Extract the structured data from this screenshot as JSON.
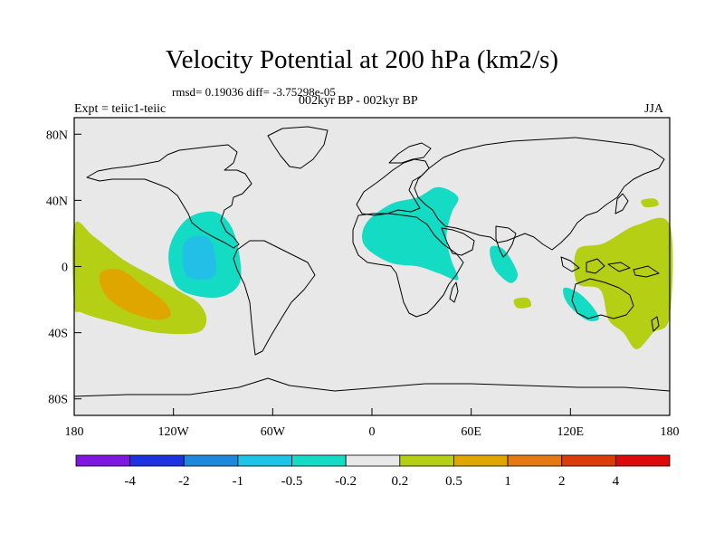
{
  "title": "Velocity Potential at 200 hPa (km2/s)",
  "stats": "rmsd= 0.19036 diff= -3.75298e-05",
  "period": "002kyr BP - 002kyr BP",
  "experiment": "Expt = teiic1-teiic",
  "season": "JJA",
  "map": {
    "projection": "cylindrical-equidistant",
    "lon_range": [
      -180,
      180
    ],
    "lat_range": [
      -90,
      90
    ],
    "x_ticks": [
      {
        "lon": -180,
        "label": "180"
      },
      {
        "lon": -120,
        "label": "120W"
      },
      {
        "lon": -60,
        "label": "60W"
      },
      {
        "lon": 0,
        "label": "0"
      },
      {
        "lon": 60,
        "label": "60E"
      },
      {
        "lon": 120,
        "label": "120E"
      },
      {
        "lon": 180,
        "label": "180"
      }
    ],
    "y_ticks": [
      {
        "lat": 80,
        "label": "80N"
      },
      {
        "lat": 40,
        "label": "40N"
      },
      {
        "lat": 0,
        "label": "0"
      },
      {
        "lat": -40,
        "label": "40S"
      },
      {
        "lat": -80,
        "label": "80S"
      }
    ],
    "background_color": "#e8e8e8",
    "anomaly_regions": [
      {
        "name": "central-pacific-positive",
        "level": "0.2 to 0.5",
        "color": "#b4cf14",
        "outline": [
          [
            -180,
            25
          ],
          [
            -168,
            18
          ],
          [
            -150,
            4
          ],
          [
            -132,
            -6
          ],
          [
            -118,
            -14
          ],
          [
            -105,
            -22
          ],
          [
            -100,
            -32
          ],
          [
            -106,
            -40
          ],
          [
            -130,
            -40
          ],
          [
            -155,
            -34
          ],
          [
            -175,
            -28
          ],
          [
            -180,
            -22
          ]
        ]
      },
      {
        "name": "central-pacific-core",
        "level": "0.5 to 1",
        "color": "#e0a600",
        "outline": [
          [
            -164,
            -4
          ],
          [
            -152,
            -2
          ],
          [
            -138,
            -12
          ],
          [
            -125,
            -22
          ],
          [
            -122,
            -30
          ],
          [
            -132,
            -32
          ],
          [
            -150,
            -26
          ],
          [
            -162,
            -16
          ]
        ]
      },
      {
        "name": "east-pacific-negative",
        "level": "-0.5 to -0.2",
        "color": "#14dcc4",
        "outline": [
          [
            -120,
            18
          ],
          [
            -110,
            30
          ],
          [
            -95,
            33
          ],
          [
            -85,
            24
          ],
          [
            -80,
            6
          ],
          [
            -80,
            -10
          ],
          [
            -90,
            -18
          ],
          [
            -105,
            -18
          ],
          [
            -118,
            -12
          ],
          [
            -123,
            4
          ]
        ]
      },
      {
        "name": "east-pacific-core",
        "level": "-1 to -0.5",
        "color": "#22bfe6",
        "outline": [
          [
            -113,
            15
          ],
          [
            -100,
            18
          ],
          [
            -95,
            8
          ],
          [
            -95,
            -5
          ],
          [
            -103,
            -8
          ],
          [
            -113,
            -4
          ]
        ]
      },
      {
        "name": "africa-mideast-negative",
        "level": "-0.5 to -0.2",
        "color": "#14dcc4",
        "outline": [
          [
            -2,
            28
          ],
          [
            12,
            38
          ],
          [
            28,
            42
          ],
          [
            40,
            48
          ],
          [
            52,
            42
          ],
          [
            48,
            32
          ],
          [
            45,
            18
          ],
          [
            48,
            4
          ],
          [
            52,
            -8
          ],
          [
            40,
            -4
          ],
          [
            28,
            0
          ],
          [
            12,
            2
          ],
          [
            -2,
            10
          ],
          [
            -6,
            18
          ]
        ]
      },
      {
        "name": "indian-ocean-negative",
        "level": "-0.5 to -0.2",
        "color": "#14dcc4",
        "outline": [
          [
            72,
            12
          ],
          [
            80,
            10
          ],
          [
            88,
            -4
          ],
          [
            84,
            -10
          ],
          [
            76,
            -4
          ],
          [
            72,
            4
          ]
        ]
      },
      {
        "name": "south-indian-positive",
        "level": "0.2 to 0.5",
        "color": "#b4cf14",
        "outline": [
          [
            86,
            -20
          ],
          [
            94,
            -19
          ],
          [
            96,
            -24
          ],
          [
            88,
            -25
          ]
        ]
      },
      {
        "name": "west-pacific-positive",
        "level": "0.2 to 0.5",
        "color": "#b4cf14",
        "outline": [
          [
            124,
            10
          ],
          [
            140,
            14
          ],
          [
            160,
            25
          ],
          [
            180,
            25
          ],
          [
            180,
            -30
          ],
          [
            170,
            -40
          ],
          [
            160,
            -50
          ],
          [
            152,
            -40
          ],
          [
            143,
            -32
          ],
          [
            138,
            -14
          ],
          [
            124,
            -10
          ]
        ]
      },
      {
        "name": "north-pacific-positive",
        "level": "0.2 to 0.5",
        "color": "#b4cf14",
        "outline": [
          [
            163,
            40
          ],
          [
            171,
            41
          ],
          [
            173,
            37
          ],
          [
            165,
            36
          ]
        ]
      },
      {
        "name": "australia-negative",
        "level": "-0.5 to -0.2",
        "color": "#14dcc4",
        "outline": [
          [
            116,
            -13
          ],
          [
            125,
            -16
          ],
          [
            134,
            -25
          ],
          [
            137,
            -32
          ],
          [
            129,
            -32
          ],
          [
            118,
            -22
          ]
        ]
      }
    ]
  },
  "colorbar": {
    "colors": [
      "#7f17e0",
      "#1f32e2",
      "#1e88dc",
      "#1ec4e8",
      "#14dcc4",
      "#e8e8e8",
      "#b4cf14",
      "#e0a600",
      "#e57a12",
      "#dc3c0a",
      "#dc0a0a"
    ],
    "labels": [
      "-4",
      "-2",
      "-1",
      "-0.5",
      "-0.2",
      "0.2",
      "0.5",
      "1",
      "2",
      "4"
    ]
  }
}
